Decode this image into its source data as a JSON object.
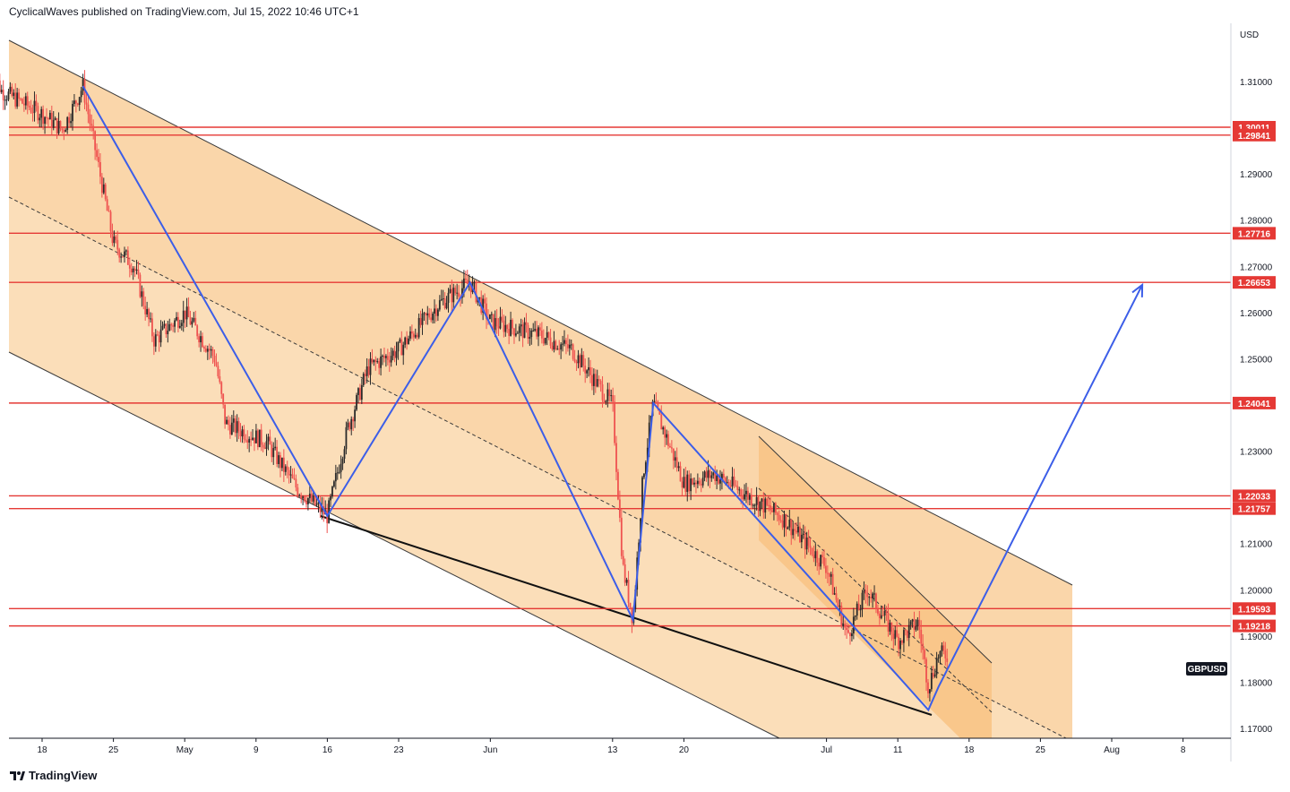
{
  "header": {
    "publisher_line": "CyclicalWaves published on TradingView.com, Jul 15, 2022 10:46 UTC+1"
  },
  "footer": {
    "brand": "TradingView"
  },
  "colors": {
    "background": "#ffffff",
    "channel_fill": "#fbdcb5",
    "inner_channel_fill": "#f8c486",
    "level_line": "#e53935",
    "level_label_bg": "#e53935",
    "wave_line": "#3c5ee8",
    "candle_up": "#2a2a2a",
    "candle_down": "#ef5350",
    "axis": "#131722"
  },
  "chart_data": {
    "type": "candlestick",
    "symbol": "GBPUSD",
    "y_axis_unit": "USD",
    "ylim": [
      1.165,
      1.3165
    ],
    "y_ticks": [
      "1.31000",
      "1.29000",
      "1.28000",
      "1.27000",
      "1.26000",
      "1.25000",
      "1.23000",
      "1.21000",
      "1.20000",
      "1.19000",
      "1.18000",
      "1.17000"
    ],
    "x_ticks": [
      "18",
      "25",
      "May",
      "9",
      "16",
      "23",
      "Jun",
      "13",
      "20",
      "Jul",
      "11",
      "18",
      "25",
      "Aug",
      "8"
    ],
    "horizontal_levels": [
      {
        "label": "1.30011",
        "value": 1.30011
      },
      {
        "label": "1.29841",
        "value": 1.29841
      },
      {
        "label": "1.27716",
        "value": 1.27716
      },
      {
        "label": "1.26653",
        "value": 1.26653
      },
      {
        "label": "1.24041",
        "value": 1.24041
      },
      {
        "label": "1.22033",
        "value": 1.22033
      },
      {
        "label": "1.21757",
        "value": 1.21757
      },
      {
        "label": "1.19593",
        "value": 1.19593
      },
      {
        "label": "1.19218",
        "value": 1.19218
      }
    ],
    "price_path": [
      {
        "date": "Apr 13",
        "price": 1.313
      },
      {
        "date": "Apr 14",
        "price": 1.308
      },
      {
        "date": "Apr 18",
        "price": 1.303
      },
      {
        "date": "Apr 20",
        "price": 1.2995
      },
      {
        "date": "Apr 22",
        "price": 1.309
      },
      {
        "date": "Apr 25",
        "price": 1.275
      },
      {
        "date": "Apr 27",
        "price": 1.27
      },
      {
        "date": "Apr 29",
        "price": 1.254
      },
      {
        "date": "May 2",
        "price": 1.26
      },
      {
        "date": "May 5",
        "price": 1.25
      },
      {
        "date": "May 6",
        "price": 1.236
      },
      {
        "date": "May 10",
        "price": 1.232
      },
      {
        "date": "May 13",
        "price": 1.222
      },
      {
        "date": "May 16",
        "price": 1.216
      },
      {
        "date": "May 18",
        "price": 1.235
      },
      {
        "date": "May 20",
        "price": 1.248
      },
      {
        "date": "May 23",
        "price": 1.252
      },
      {
        "date": "May 27",
        "price": 1.262
      },
      {
        "date": "May 30",
        "price": 1.2665
      },
      {
        "date": "Jun 1",
        "price": 1.258
      },
      {
        "date": "Jun 6",
        "price": 1.255
      },
      {
        "date": "Jun 9",
        "price": 1.252
      },
      {
        "date": "Jun 13",
        "price": 1.24
      },
      {
        "date": "Jun 14",
        "price": 1.205
      },
      {
        "date": "Jun 15",
        "price": 1.1935
      },
      {
        "date": "Jun 16",
        "price": 1.225
      },
      {
        "date": "Jun 17",
        "price": 1.2404
      },
      {
        "date": "Jun 20",
        "price": 1.223
      },
      {
        "date": "Jun 23",
        "price": 1.225
      },
      {
        "date": "Jun 28",
        "price": 1.218
      },
      {
        "date": "Jun 30",
        "price": 1.215
      },
      {
        "date": "Jul 4",
        "price": 1.205
      },
      {
        "date": "Jul 6",
        "price": 1.19
      },
      {
        "date": "Jul 8",
        "price": 1.2
      },
      {
        "date": "Jul 11",
        "price": 1.189
      },
      {
        "date": "Jul 13",
        "price": 1.193
      },
      {
        "date": "Jul 14",
        "price": 1.179
      },
      {
        "date": "Jul 15",
        "price": 1.186
      }
    ],
    "wave_path": [
      {
        "date": "Apr 22",
        "price": 1.309
      },
      {
        "date": "May 16",
        "price": 1.216
      },
      {
        "date": "May 30",
        "price": 1.2665
      },
      {
        "date": "Jun 15",
        "price": 1.1935
      },
      {
        "date": "Jun 17",
        "price": 1.2404
      },
      {
        "date": "Jul 14",
        "price": 1.174
      },
      {
        "date": "Jul 15",
        "price": 1.179
      },
      {
        "date": "Aug 4",
        "price": 1.266
      }
    ]
  }
}
